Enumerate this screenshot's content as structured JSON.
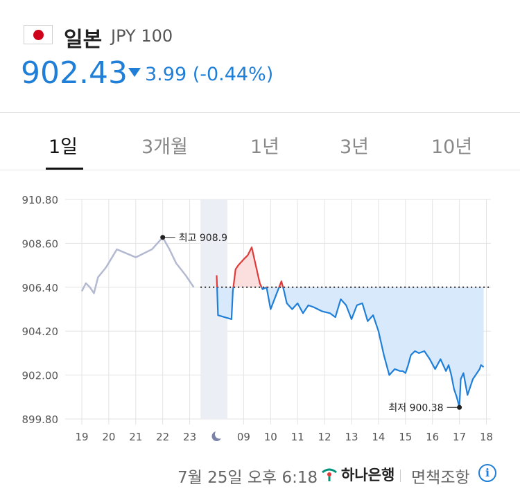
{
  "header": {
    "country": "일본",
    "currency_code": "JPY 100",
    "price": "902.43",
    "change": "3.99",
    "change_pct": "(-0.44%)",
    "down_color": "#1f7fd8",
    "up_color": "#e03a3a"
  },
  "tabs": [
    {
      "label": "1일",
      "active": true
    },
    {
      "label": "3개월",
      "active": false
    },
    {
      "label": "1년",
      "active": false
    },
    {
      "label": "3년",
      "active": false
    },
    {
      "label": "10년",
      "active": false
    }
  ],
  "chart_data": {
    "type": "line",
    "y_ticks": [
      "910.80",
      "908.60",
      "906.40",
      "904.20",
      "902.00",
      "899.80"
    ],
    "ylim": [
      899.8,
      910.8
    ],
    "x_ticks": [
      "19",
      "20",
      "21",
      "22",
      "23",
      "moon-icon",
      "09",
      "10",
      "11",
      "12",
      "13",
      "14",
      "15",
      "16",
      "17",
      "18"
    ],
    "baseline": 906.4,
    "high_label": "최고 908.9",
    "low_label": "최저 900.38",
    "high_value": 908.9,
    "low_value": 900.38,
    "previous_days_series": {
      "name": "",
      "x": [
        0.0,
        0.15,
        0.3,
        0.45,
        0.6,
        0.9,
        1.3,
        2.0,
        2.6,
        3.0,
        3.25,
        3.5,
        3.85,
        4.15
      ],
      "y": [
        906.2,
        906.6,
        906.4,
        906.1,
        906.9,
        907.4,
        908.3,
        907.9,
        908.3,
        908.9,
        908.3,
        907.6,
        907.0,
        906.4
      ]
    },
    "today_series": {
      "name": "",
      "x": [
        5.0,
        5.05,
        5.55,
        5.6,
        5.7,
        5.8,
        6.0,
        6.15,
        6.3,
        6.5,
        6.6,
        6.7,
        6.85,
        7.0,
        7.2,
        7.4,
        7.5,
        7.6,
        7.8,
        8.0,
        8.2,
        8.4,
        8.6,
        8.9,
        9.2,
        9.4,
        9.6,
        9.8,
        10.0,
        10.2,
        10.4,
        10.6,
        10.8,
        11.0,
        11.2,
        11.4,
        11.6,
        11.8,
        11.9,
        12.0,
        12.1,
        12.2,
        12.35,
        12.5,
        12.7,
        12.9,
        13.1,
        13.3,
        13.5,
        13.6,
        13.7,
        13.8,
        13.9,
        14.0,
        14.05,
        14.15,
        14.3,
        14.5,
        14.6,
        14.75,
        14.8,
        14.9
      ],
      "y": [
        907.0,
        905.0,
        904.8,
        906.2,
        907.3,
        907.5,
        907.8,
        908.0,
        908.4,
        907.2,
        906.6,
        906.3,
        906.4,
        905.3,
        906.0,
        906.7,
        906.2,
        905.6,
        905.3,
        905.6,
        905.1,
        905.5,
        905.4,
        905.2,
        905.1,
        904.9,
        905.8,
        905.5,
        904.8,
        905.5,
        905.6,
        904.7,
        905.0,
        904.2,
        903.0,
        902.0,
        902.3,
        902.2,
        902.2,
        902.1,
        902.5,
        903.0,
        903.2,
        903.1,
        903.2,
        902.8,
        902.3,
        902.8,
        902.2,
        902.5,
        902.0,
        901.3,
        900.9,
        900.4,
        901.8,
        902.1,
        901.0,
        901.8,
        902.0,
        902.3,
        902.5,
        902.4
      ]
    }
  },
  "footer": {
    "timestamp": "7월 25일 오후 6:18",
    "bank": "하나은행",
    "disclaimer": "면책조항"
  }
}
